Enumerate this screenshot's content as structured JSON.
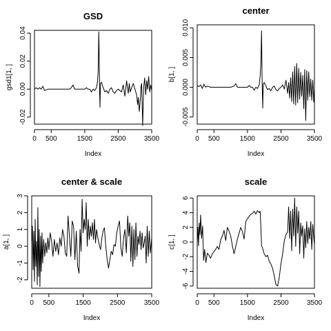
{
  "chart_data": [
    {
      "type": "line",
      "title": "GSD",
      "xlabel": "Index",
      "ylabel": "gsd1[1, ]",
      "xlim": [
        0,
        3500
      ],
      "ylim": [
        -0.025,
        0.042
      ],
      "xticks": [
        0,
        500,
        1500,
        2500,
        3500
      ],
      "yticks": [
        -0.02,
        0.0,
        0.02,
        0.04
      ],
      "ytick_labels": [
        "-0.02",
        "0.00",
        "0.02",
        "0.04"
      ],
      "series": [
        {
          "x": [
            0,
            50,
            100,
            150,
            200,
            250,
            300,
            400,
            500,
            600,
            700,
            800,
            900,
            1000,
            1050,
            1100,
            1150,
            1200,
            1300,
            1400,
            1500,
            1550,
            1600,
            1650,
            1700,
            1750,
            1800,
            1850,
            1880,
            1900,
            1920,
            1935,
            1945,
            1955,
            1970,
            2000,
            2050,
            2100,
            2150,
            2200,
            2250,
            2300,
            2350,
            2400,
            2450,
            2500,
            2550,
            2600,
            2650,
            2700,
            2750,
            2800,
            2830,
            2860,
            2900,
            2950,
            3000,
            3050,
            3080,
            3100,
            3130,
            3160,
            3180,
            3200,
            3230,
            3260,
            3290,
            3320,
            3350,
            3380,
            3410,
            3440,
            3470,
            3500
          ],
          "y": [
            0.0,
            0.001,
            0.0,
            0.001,
            0.0,
            0.002,
            -0.001,
            0.0,
            0.0,
            0.0,
            0.0,
            0.0,
            0.0,
            0.0,
            0.0,
            0.001,
            0.003,
            0.0,
            0.0,
            0.0,
            0.0,
            0.001,
            0.0,
            0.0,
            -0.002,
            0.0,
            -0.001,
            0.001,
            0.005,
            0.012,
            0.041,
            0.018,
            -0.002,
            -0.013,
            0.004,
            0.005,
            0.001,
            -0.002,
            -0.001,
            -0.003,
            0.0,
            0.001,
            -0.002,
            -0.003,
            -0.001,
            0.0,
            -0.001,
            -0.002,
            0.003,
            -0.005,
            0.006,
            -0.003,
            0.004,
            -0.002,
            0.001,
            0.004,
            0.0,
            -0.004,
            -0.011,
            -0.006,
            -0.016,
            -0.007,
            0.002,
            0.004,
            -0.026,
            0.001,
            0.008,
            -0.004,
            0.006,
            0.0,
            0.009,
            -0.002,
            0.003,
            -0.001
          ]
        }
      ]
    },
    {
      "type": "line",
      "title": "center",
      "xlabel": "Index",
      "ylabel": "b[1, ]",
      "xlim": [
        0,
        3500
      ],
      "ylim": [
        -0.0062,
        0.0105
      ],
      "xticks": [
        0,
        500,
        1500,
        2500,
        3500
      ],
      "yticks": [
        -0.005,
        0.0,
        0.005,
        0.01
      ],
      "ytick_labels": [
        "-0.005",
        "0.000",
        "0.005",
        "0.010"
      ],
      "series": [
        {
          "x": [
            0,
            50,
            100,
            150,
            200,
            250,
            300,
            400,
            500,
            600,
            700,
            800,
            900,
            1000,
            1100,
            1150,
            1200,
            1300,
            1400,
            1500,
            1550,
            1600,
            1650,
            1700,
            1750,
            1800,
            1850,
            1880,
            1900,
            1920,
            1935,
            1945,
            1955,
            1970,
            2000,
            2050,
            2100,
            2150,
            2200,
            2250,
            2300,
            2350,
            2400,
            2450,
            2500,
            2550,
            2600,
            2650,
            2700,
            2730,
            2760,
            2790,
            2820,
            2850,
            2880,
            2910,
            2940,
            2970,
            3000,
            3030,
            3060,
            3090,
            3120,
            3150,
            3180,
            3210,
            3240,
            3270,
            3300,
            3330,
            3360,
            3390,
            3420,
            3450,
            3480,
            3500
          ],
          "y": [
            0.0003,
            0.0001,
            0.0004,
            -0.0002,
            0.0005,
            0.0,
            0.0002,
            0.0,
            0.0,
            0.0,
            0.0,
            0.0,
            0.0,
            0.0,
            0.0002,
            0.0006,
            0.0,
            0.0,
            0.0,
            0.0,
            0.0003,
            0.0,
            0.0,
            -0.0005,
            0.0,
            -0.0002,
            0.0004,
            0.002,
            0.004,
            0.0095,
            0.002,
            -0.001,
            -0.0035,
            0.0005,
            0.0008,
            0.0002,
            -0.0004,
            -0.0002,
            -0.0006,
            0.0,
            0.0002,
            -0.0004,
            -0.0006,
            -0.0002,
            0.0,
            0.0004,
            -0.0003,
            0.0012,
            -0.001,
            0.0008,
            -0.0018,
            0.0016,
            -0.0024,
            0.0026,
            -0.0028,
            0.0035,
            -0.003,
            0.004,
            -0.0026,
            0.0032,
            -0.002,
            0.0025,
            -0.0015,
            0.002,
            -0.0036,
            0.003,
            -0.0056,
            0.0028,
            -0.0022,
            0.0026,
            -0.0016,
            0.0014,
            -0.0022,
            0.0012,
            -0.0025,
            -0.0002
          ]
        }
      ]
    },
    {
      "type": "line",
      "title": "center & scale",
      "xlabel": "Index",
      "ylabel": "a[1, ]",
      "xlim": [
        0,
        3500
      ],
      "ylim": [
        -2.5,
        3.0
      ],
      "xticks": [
        0,
        500,
        1500,
        2500,
        3500
      ],
      "yticks": [
        -2,
        -1,
        0,
        1,
        2,
        3
      ],
      "ytick_labels": [
        "-2",
        "-1",
        "0",
        "1",
        "2",
        "3"
      ],
      "series": [
        {
          "x": [
            0,
            20,
            40,
            60,
            80,
            100,
            120,
            140,
            160,
            180,
            200,
            220,
            240,
            260,
            280,
            300,
            320,
            350,
            380,
            410,
            440,
            470,
            500,
            540,
            580,
            620,
            660,
            700,
            740,
            780,
            820,
            860,
            900,
            940,
            980,
            1020,
            1060,
            1100,
            1140,
            1180,
            1220,
            1260,
            1300,
            1340,
            1380,
            1410,
            1440,
            1470,
            1500,
            1530,
            1560,
            1590,
            1620,
            1650,
            1680,
            1710,
            1740,
            1770,
            1800,
            1830,
            1860,
            1890,
            1920,
            1950,
            1980,
            2010,
            2040,
            2080,
            2120,
            2160,
            2200,
            2240,
            2280,
            2320,
            2360,
            2400,
            2440,
            2480,
            2520,
            2560,
            2600,
            2640,
            2680,
            2720,
            2760,
            2800,
            2830,
            2860,
            2890,
            2920,
            2950,
            2980,
            3010,
            3040,
            3070,
            3100,
            3130,
            3160,
            3190,
            3220,
            3250,
            3280,
            3310,
            3340,
            3370,
            3400,
            3430,
            3460,
            3500
          ],
          "y": [
            0.2,
            1.2,
            -1.4,
            0.9,
            -2.1,
            1.6,
            -1.2,
            0.3,
            -2.3,
            2.3,
            -1.8,
            1.0,
            -2.4,
            0.6,
            -1.5,
            0.8,
            -1.0,
            0.4,
            -0.6,
            0.2,
            -0.4,
            0.5,
            -0.2,
            0.8,
            0.3,
            -0.6,
            0.4,
            -0.3,
            0.2,
            -0.5,
            0.5,
            0.0,
            1.0,
            0.6,
            -0.4,
            -0.6,
            1.8,
            0.6,
            -0.6,
            1.5,
            1.2,
            -0.8,
            0.9,
            -1.2,
            -1.6,
            1.0,
            -0.3,
            2.8,
            0.8,
            1.6,
            1.0,
            2.6,
            0.0,
            1.6,
            0.4,
            1.2,
            0.6,
            1.4,
            0.4,
            1.6,
            0.2,
            1.0,
            0.6,
            0.3,
            0.0,
            -0.2,
            0.4,
            0.9,
            1.1,
            0.0,
            -0.8,
            -1.3,
            -0.8,
            -0.3,
            -0.5,
            0.1,
            0.0,
            0.8,
            1.2,
            1.5,
            -0.1,
            -0.6,
            0.5,
            1.0,
            -0.4,
            1.8,
            0.6,
            1.4,
            -0.9,
            1.2,
            -1.2,
            1.0,
            -0.8,
            1.4,
            -0.6,
            0.6,
            0.1,
            0.9,
            -0.2,
            0.8,
            -0.1,
            0.2,
            0.6,
            -1.0,
            1.2,
            -0.6,
            0.9,
            -0.4,
            0.5
          ]
        }
      ]
    },
    {
      "type": "line",
      "title": "scale",
      "xlabel": "Index",
      "ylabel": "c[1, ]",
      "xlim": [
        0,
        3500
      ],
      "ylim": [
        -6.3,
        6.3
      ],
      "xticks": [
        0,
        500,
        1500,
        2500,
        3500
      ],
      "yticks": [
        -6,
        -4,
        -2,
        0,
        2,
        4,
        6
      ],
      "ytick_labels": [
        "-6",
        "-4",
        "-2",
        "0",
        "2",
        "4",
        "6"
      ],
      "series": [
        {
          "x": [
            0,
            20,
            40,
            60,
            80,
            100,
            130,
            160,
            190,
            220,
            260,
            300,
            350,
            400,
            450,
            500,
            550,
            600,
            650,
            700,
            750,
            800,
            850,
            900,
            950,
            1000,
            1050,
            1100,
            1150,
            1200,
            1250,
            1300,
            1350,
            1400,
            1450,
            1500,
            1550,
            1600,
            1650,
            1700,
            1750,
            1800,
            1850,
            1880,
            1900,
            1920,
            1950,
            2000,
            2050,
            2100,
            2150,
            2200,
            2250,
            2300,
            2350,
            2400,
            2450,
            2500,
            2550,
            2600,
            2650,
            2700,
            2730,
            2760,
            2790,
            2820,
            2850,
            2880,
            2910,
            2940,
            2970,
            3000,
            3030,
            3060,
            3090,
            3120,
            3150,
            3180,
            3210,
            3240,
            3270,
            3300,
            3330,
            3360,
            3390,
            3420,
            3450,
            3480,
            3500
          ],
          "y": [
            0.0,
            2.0,
            -0.5,
            2.6,
            1.0,
            3.7,
            0.5,
            2.2,
            -2.5,
            -1.0,
            -2.8,
            -1.5,
            -1.8,
            -2.2,
            -1.6,
            -1.3,
            -1.0,
            -0.6,
            -1.0,
            0.3,
            0.8,
            1.6,
            0.2,
            2.0,
            1.5,
            0.8,
            -0.5,
            -1.6,
            -0.6,
            0.4,
            1.2,
            2.0,
            1.4,
            0.4,
            2.8,
            3.2,
            3.5,
            3.8,
            3.9,
            4.2,
            3.8,
            4.3,
            4.0,
            4.2,
            2.0,
            -0.5,
            -0.8,
            -1.6,
            -2.0,
            -1.8,
            -2.6,
            -3.0,
            -3.6,
            -4.6,
            -5.8,
            -6.0,
            -4.8,
            -3.0,
            -1.6,
            0.2,
            1.0,
            1.4,
            4.8,
            0.5,
            4.2,
            -1.2,
            4.5,
            0.8,
            6.0,
            -0.6,
            4.8,
            1.2,
            4.2,
            -1.6,
            2.6,
            0.8,
            2.2,
            -2.2,
            1.8,
            -0.8,
            2.8,
            -0.2,
            2.0,
            0.4,
            2.8,
            -1.0,
            2.4,
            0.6,
            -0.4
          ]
        }
      ]
    }
  ]
}
